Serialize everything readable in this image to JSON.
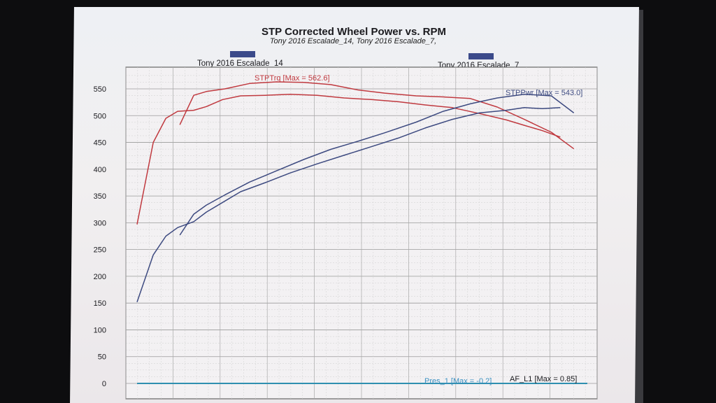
{
  "chart_data": {
    "type": "line",
    "title": "STP Corrected Wheel Power vs. RPM",
    "subtitle": "Tony 2016 Escalade_14, Tony 2016 Escalade_7,",
    "legend": [
      {
        "name": "Tony 2016 Escalade_14",
        "color": "#3b4a8a"
      },
      {
        "name": "Tony 2016 Escalade_7",
        "color": "#3b4a8a"
      }
    ],
    "annotations": {
      "torque": "STPTrq [Max = 562.6]",
      "power": "STPPwr [Max = 543.0]",
      "bottom_left": "Pres_1 [Max = -0.2]",
      "bottom_right": "AF_L1 [Max = 0.85]"
    },
    "yticks": [
      "550",
      "500",
      "450",
      "400",
      "350",
      "300",
      "250",
      "200",
      "150",
      "100",
      "50",
      "0"
    ],
    "ylim": [
      0,
      575
    ],
    "xlim": [
      0,
      100
    ],
    "grid": true,
    "colors": {
      "torque": "#c0393f",
      "power": "#3d4a80",
      "baseline": "#2f8fb0"
    },
    "series": [
      {
        "name": "Tony 2016 Escalade_14 STPTrq",
        "kind": "torque",
        "x": [
          0,
          3.6,
          6.4,
          9,
          12.6,
          15.4,
          19,
          23,
          28.5,
          34,
          40,
          46,
          52,
          58,
          64,
          70,
          76,
          82,
          86,
          90,
          94
        ],
        "y": [
          297,
          450,
          495,
          508,
          510,
          517,
          530,
          537,
          538,
          540,
          538,
          533,
          530,
          526,
          520,
          515,
          504,
          492,
          482,
          472,
          460
        ]
      },
      {
        "name": "Tony 2016 Escalade_7 STPTrq",
        "kind": "torque",
        "x": [
          9.5,
          12.6,
          15.4,
          19.5,
          25,
          31,
          37,
          43,
          49,
          55,
          62,
          68,
          74,
          80,
          86,
          92,
          97
        ],
        "y": [
          483,
          538,
          545,
          550,
          560,
          563,
          562,
          558,
          548,
          542,
          537,
          535,
          532,
          516,
          493,
          469,
          438
        ]
      },
      {
        "name": "Tony 2016 Escalade_14 STPPwr",
        "kind": "power",
        "x": [
          0,
          3.6,
          6.4,
          9,
          12.6,
          15.4,
          19,
          23,
          28.5,
          34,
          40,
          46,
          52,
          58,
          64,
          70,
          76,
          82,
          86,
          90,
          94
        ],
        "y": [
          152,
          240,
          275,
          291,
          302,
          320,
          338,
          358,
          375,
          393,
          410,
          426,
          442,
          458,
          477,
          493,
          505,
          510,
          515,
          513,
          515
        ]
      },
      {
        "name": "Tony 2016 Escalade_7 STPPwr",
        "kind": "power",
        "x": [
          9.5,
          12.6,
          15.4,
          19.5,
          25,
          31,
          37,
          43,
          49,
          55,
          62,
          68,
          74,
          80,
          86,
          92,
          97
        ],
        "y": [
          277,
          316,
          333,
          352,
          376,
          397,
          418,
          437,
          452,
          468,
          488,
          508,
          522,
          533,
          540,
          537,
          505
        ]
      },
      {
        "name": "Pres_1",
        "kind": "baseline",
        "x": [
          0,
          100
        ],
        "y": [
          0,
          0
        ]
      }
    ]
  }
}
